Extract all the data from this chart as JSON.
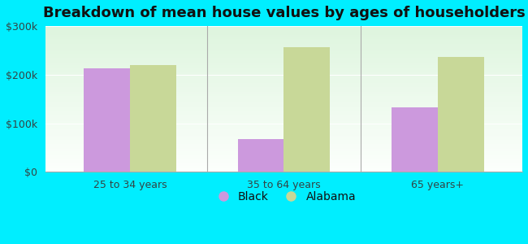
{
  "title": "Breakdown of mean house values by ages of householders",
  "categories": [
    "25 to 34 years",
    "35 to 64 years",
    "65 years+"
  ],
  "black_values": [
    213000,
    67000,
    133000
  ],
  "alabama_values": [
    220000,
    257000,
    237000
  ],
  "black_color": "#cc99dd",
  "alabama_color": "#c8d898",
  "background_outer": "#00eeff",
  "background_inner_top": "#e0f0e0",
  "background_inner_bottom": "#f5fff5",
  "ylim": [
    0,
    300000
  ],
  "yticks": [
    0,
    100000,
    200000,
    300000
  ],
  "ytick_labels": [
    "$0",
    "$100k",
    "$200k",
    "$300k"
  ],
  "bar_width": 0.3,
  "legend_labels": [
    "Black",
    "Alabama"
  ],
  "title_fontsize": 13,
  "tick_fontsize": 9,
  "legend_fontsize": 10,
  "tick_color": "#334444"
}
